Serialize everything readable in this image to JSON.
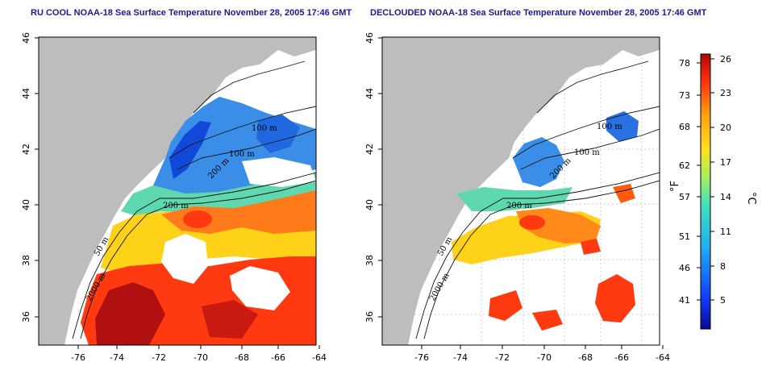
{
  "panels": [
    {
      "title": "RU COOL NOAA-18 Sea Surface Temperature November 28, 2005 17:46 GMT",
      "contour_labels": [
        "100 m",
        "100 m",
        "200 m",
        "200 m",
        "50 m",
        "2000 m"
      ]
    },
    {
      "title": "DECLOUDED NOAA-18 Sea Surface Temperature November 28, 2005 17:46 GMT",
      "contour_labels": [
        "100 m",
        "100 m",
        "200 m",
        "200 m",
        "50 m",
        "2000 m"
      ]
    }
  ],
  "axes": {
    "x_ticks": [
      "-76",
      "-74",
      "-72",
      "-70",
      "-68",
      "-66",
      "-64"
    ],
    "y_ticks": [
      "36",
      "38",
      "40",
      "42",
      "44",
      "46"
    ]
  },
  "colorbar": {
    "fahrenheit_ticks": [
      "78",
      "73",
      "68",
      "62",
      "57",
      "51",
      "46",
      "41"
    ],
    "celsius_ticks": [
      "26",
      "23",
      "20",
      "17",
      "14",
      "11",
      "8",
      "5"
    ],
    "fahrenheit_unit": "°F",
    "celsius_unit": "°C"
  },
  "colors": {
    "land": "#bdbdbd",
    "title": "#1a1a9c",
    "cold": "#0a2acb",
    "cool": "#2aa0e8",
    "mid": "#6ed8a0",
    "warm": "#ffd21a",
    "hot": "#ff5a10",
    "hottest": "#9a0a0a"
  }
}
